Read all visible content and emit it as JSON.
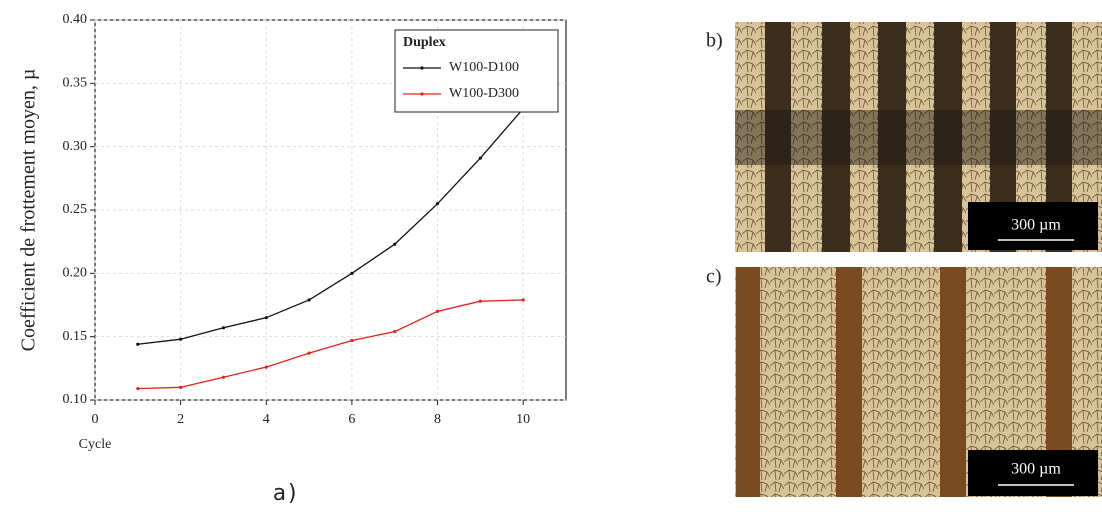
{
  "chart_data": {
    "type": "line",
    "x_label": "Cycle",
    "y_label": "Coefficient de frottement moyen, µ",
    "legend_title": "Duplex",
    "legend": "top-right",
    "grid": true,
    "x": [
      1,
      2,
      3,
      4,
      5,
      6,
      7,
      8,
      9,
      10
    ],
    "series": [
      {
        "name": "W100-D100",
        "color": "#111111",
        "values": [
          0.144,
          0.148,
          0.157,
          0.165,
          0.179,
          0.2,
          0.223,
          0.255,
          0.291,
          0.33
        ]
      },
      {
        "name": "W100-D300",
        "color": "#e8201a",
        "values": [
          0.109,
          0.11,
          0.118,
          0.126,
          0.137,
          0.147,
          0.154,
          0.17,
          0.178,
          0.179
        ]
      }
    ],
    "xlim": [
      0,
      11
    ],
    "xticks": [
      0,
      2,
      4,
      6,
      8,
      10
    ],
    "ylim": [
      0.1,
      0.4
    ],
    "yticks": [
      {
        "value": 0.1,
        "label": "0.10"
      },
      0.15,
      {
        "value": 0.2,
        "label": "0.20"
      },
      0.25,
      {
        "value": 0.3,
        "label": "0.30"
      },
      0.35,
      {
        "value": 0.4,
        "label": "0.40"
      }
    ]
  },
  "panels": [
    {
      "label": "a)"
    },
    {
      "label": "b)",
      "scale_bar": "300 µm"
    },
    {
      "label": "c)",
      "scale_bar": "300 µm"
    }
  ]
}
